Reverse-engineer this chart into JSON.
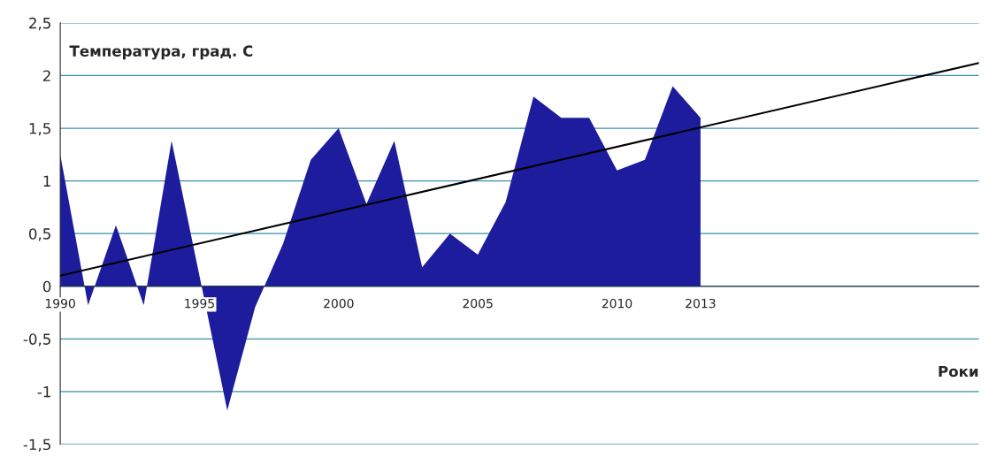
{
  "chart_data": {
    "type": "area",
    "ylabel": "Температура, град. С",
    "xlabel": "Роки",
    "x": [
      1990,
      1991,
      1992,
      1993,
      1994,
      1995,
      1996,
      1997,
      1998,
      1999,
      2000,
      2001,
      2002,
      2003,
      2004,
      2005,
      2006,
      2007,
      2008,
      2009,
      2010,
      2011,
      2012,
      2013
    ],
    "series": [
      {
        "color": "#1c1c9c",
        "values": [
          1.25,
          -0.18,
          0.58,
          -0.18,
          1.38,
          0.1,
          -1.18,
          -0.2,
          0.4,
          1.2,
          1.5,
          0.78,
          1.38,
          0.18,
          0.5,
          0.3,
          0.8,
          1.8,
          1.6,
          1.6,
          1.1,
          1.2,
          1.9,
          1.6
        ]
      },
      {
        "type": "line",
        "color": "#000000",
        "x": [
          1990,
          2023
        ],
        "values": [
          0.1,
          2.12
        ]
      }
    ],
    "xlim": [
      1990,
      2023
    ],
    "xticks": [
      1990,
      1995,
      2000,
      2005,
      2010,
      2013
    ],
    "ylim": [
      -1.5,
      2.5
    ],
    "yticks": [
      {
        "value": -1.5,
        "label": "-1,5"
      },
      {
        "value": -1,
        "label": "-1"
      },
      {
        "value": -0.5,
        "label": "-0,5"
      },
      {
        "value": 0,
        "label": "0"
      },
      {
        "value": 0.5,
        "label": "0,5"
      },
      {
        "value": 1,
        "label": "1"
      },
      {
        "value": 1.5,
        "label": "1,5"
      },
      {
        "value": 2,
        "label": "2"
      },
      {
        "value": 2.5,
        "label": "2,5"
      }
    ],
    "grid": "y",
    "legend": false
  }
}
